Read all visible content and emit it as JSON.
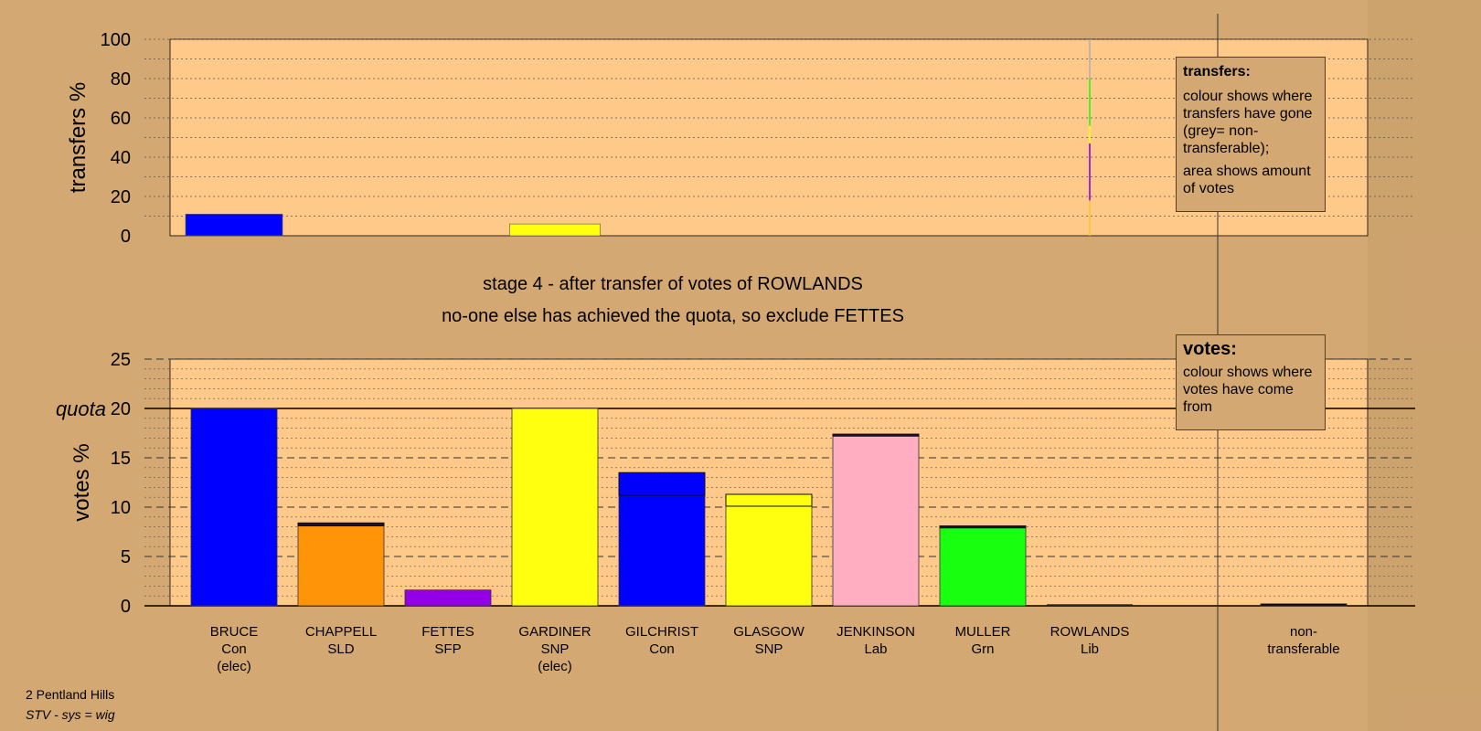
{
  "stage_title": "stage 4 - after transfer of votes of ROWLANDS",
  "stage_subtitle": "no-one else has achieved the quota, so exclude FETTES",
  "quota_label": "quota",
  "footer": {
    "line1": "2 Pentland Hills",
    "line2": "STV - sys = wig"
  },
  "transfers_legend": {
    "title": "transfers:",
    "p1": "colour shows where transfers have gone (grey= non-transferable);",
    "p2": "area shows amount of votes"
  },
  "votes_legend": {
    "title": "votes:",
    "p1": "colour shows where votes have come from"
  },
  "colors": {
    "background": "#d4a872",
    "plot_bg": "#ffc98a",
    "Con": "#0000ff",
    "SLD": "#ff9408",
    "SFP": "#9400e6",
    "SNP": "#ffff10",
    "Lab": "#ffadc0",
    "Grn": "#18ff10",
    "Lib": "#ffc030",
    "nontransferable": "#b0b0b0"
  },
  "chart_data": [
    {
      "type": "bar",
      "name": "transfers",
      "ylabel": "transfers %",
      "ylim": [
        0,
        100
      ],
      "yticks": [
        0,
        20,
        40,
        60,
        80,
        100
      ],
      "grid": true,
      "categories": [
        "BRUCE",
        "CHAPPELL",
        "FETTES",
        "GARDINER",
        "GILCHRIST",
        "GLASGOW",
        "JENKINSON",
        "MULLER",
        "ROWLANDS",
        "non-transferable"
      ],
      "values": [
        11,
        0,
        0,
        6,
        0,
        0,
        0,
        0,
        0,
        0
      ],
      "series_colors": [
        "Con",
        "SLD",
        "SFP",
        "SNP",
        "Con",
        "SNP",
        "Lab",
        "Grn",
        "Lib",
        "nontransferable"
      ],
      "source_column": "ROWLANDS",
      "source_stack": [
        {
          "party": "Lib",
          "from": 0,
          "to": 18
        },
        {
          "party": "SFP",
          "from": 18,
          "to": 47
        },
        {
          "party": "SNP",
          "from": 47,
          "to": 56
        },
        {
          "party": "Grn",
          "from": 56,
          "to": 80
        },
        {
          "party": "nontransferable",
          "from": 80,
          "to": 100
        }
      ]
    },
    {
      "type": "bar",
      "name": "votes",
      "ylabel": "votes %",
      "ylim": [
        0,
        25
      ],
      "yticks": [
        0,
        5,
        10,
        15,
        20,
        25
      ],
      "quota": 20,
      "grid": true,
      "categories": [
        {
          "name": "BRUCE",
          "party": "Con",
          "note": "(elec)",
          "base": 20,
          "added": 0
        },
        {
          "name": "CHAPPELL",
          "party": "SLD",
          "note": "",
          "base": 8.1,
          "added": 0.3
        },
        {
          "name": "FETTES",
          "party": "SFP",
          "note": "",
          "base": 1.6,
          "added": 0
        },
        {
          "name": "GARDINER",
          "party": "SNP",
          "note": "(elec)",
          "base": 20,
          "added": 0
        },
        {
          "name": "GILCHRIST",
          "party": "Con",
          "note": "",
          "base": 11.2,
          "added": 2.3
        },
        {
          "name": "GLASGOW",
          "party": "SNP",
          "note": "",
          "base": 10.1,
          "added": 1.2
        },
        {
          "name": "JENKINSON",
          "party": "Lab",
          "note": "",
          "base": 17.2,
          "added": 0.2
        },
        {
          "name": "MULLER",
          "party": "Grn",
          "note": "",
          "base": 7.9,
          "added": 0.2
        },
        {
          "name": "ROWLANDS",
          "party": "Lib",
          "note": "",
          "base": 0,
          "added": 0
        },
        {
          "name": "non-",
          "party": "transferable",
          "note": "",
          "base": 0.2,
          "added": 0
        }
      ]
    }
  ]
}
